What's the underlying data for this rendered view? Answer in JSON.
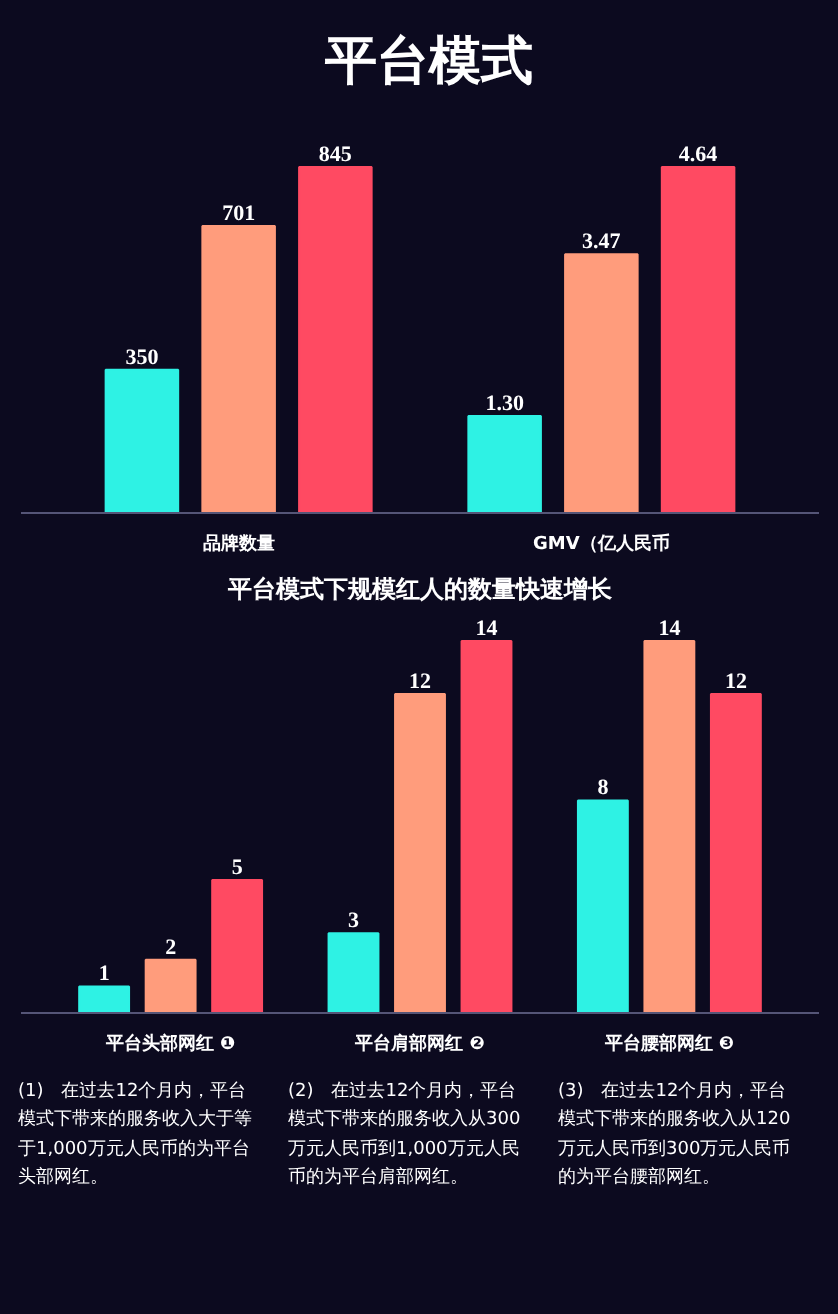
{
  "chart_data": [
    {
      "type": "bar",
      "title": "平台模式",
      "categories": [
        "品牌数量",
        "GMV（亿人民币"
      ],
      "series": [
        {
          "color": "#2ef2e4",
          "values": [
            350,
            null
          ],
          "value_labels": [
            "350",
            null
          ]
        },
        {
          "color": "#ff9c7c",
          "values": [
            701,
            null
          ],
          "value_labels": [
            "701",
            null
          ]
        },
        {
          "color": "#ff4a62",
          "values": [
            845,
            null
          ],
          "value_labels": [
            "845",
            null
          ]
        },
        {
          "color": "#2ef2e4",
          "axis": "y2",
          "values": [
            null,
            1.3
          ],
          "value_labels": [
            null,
            "1.30"
          ]
        },
        {
          "color": "#ff9c7c",
          "axis": "y2",
          "values": [
            null,
            3.47
          ],
          "value_labels": [
            null,
            "3.47"
          ]
        },
        {
          "color": "#ff4a62",
          "axis": "y2",
          "values": [
            null,
            4.64
          ],
          "value_labels": [
            null,
            "4.64"
          ]
        }
      ]
    },
    {
      "type": "bar",
      "title": "平台模式下规模红人的数量快速增长",
      "categories": [
        "平台头部网红 ❶",
        "平台肩部网红 ❷",
        "平台腰部网红 ❸"
      ],
      "series": [
        {
          "color": "#2ef2e4",
          "values": [
            1,
            3,
            8
          ],
          "value_labels": [
            "1",
            "3",
            "8"
          ]
        },
        {
          "color": "#ff9c7c",
          "values": [
            2,
            12,
            14
          ],
          "value_labels": [
            "2",
            "12",
            "14"
          ]
        },
        {
          "color": "#ff4a62",
          "values": [
            5,
            14,
            12
          ],
          "value_labels": [
            "5",
            "14",
            "12"
          ]
        }
      ],
      "annotations": [
        "(1)　在过去12个月内，平台模式下带来的服务收入大于等于1,000万元人民币的为平台头部网红。",
        "(2)　在过去12个月内，平台模式下带来的服务收入从300万元人民币到1,000万元人民币的为平台肩部网红。",
        "(3)　在过去12个月内，平台模式下带来的服务收入从120万元人民币到300万元人民币的为平台腰部网红。"
      ]
    }
  ]
}
